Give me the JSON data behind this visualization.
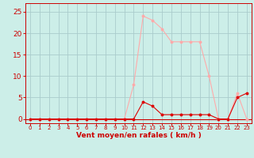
{
  "x": [
    0,
    1,
    2,
    3,
    4,
    5,
    6,
    7,
    8,
    9,
    10,
    11,
    12,
    13,
    14,
    15,
    16,
    17,
    18,
    19,
    20,
    21,
    22,
    23
  ],
  "rafales": [
    0,
    0,
    0,
    0,
    0,
    0,
    0,
    0,
    0,
    0,
    0,
    8,
    24,
    23,
    21,
    18,
    18,
    18,
    18,
    10,
    0,
    0,
    6,
    0
  ],
  "moyen": [
    0,
    0,
    0,
    0,
    0,
    0,
    0,
    0,
    0,
    0,
    0,
    0,
    4,
    3,
    1,
    1,
    1,
    1,
    1,
    1,
    0,
    0,
    5,
    6
  ],
  "color_rafales": "#ffaaaa",
  "color_moyen": "#dd0000",
  "bg_color": "#cceee8",
  "grid_color": "#aacccc",
  "xlabel": "Vent moyen/en rafales ( km/h )",
  "xlabel_color": "#cc0000",
  "tick_color": "#cc0000",
  "ylim": [
    -1,
    27
  ],
  "yticks": [
    0,
    5,
    10,
    15,
    20,
    25
  ],
  "xlim": [
    -0.5,
    23.5
  ]
}
